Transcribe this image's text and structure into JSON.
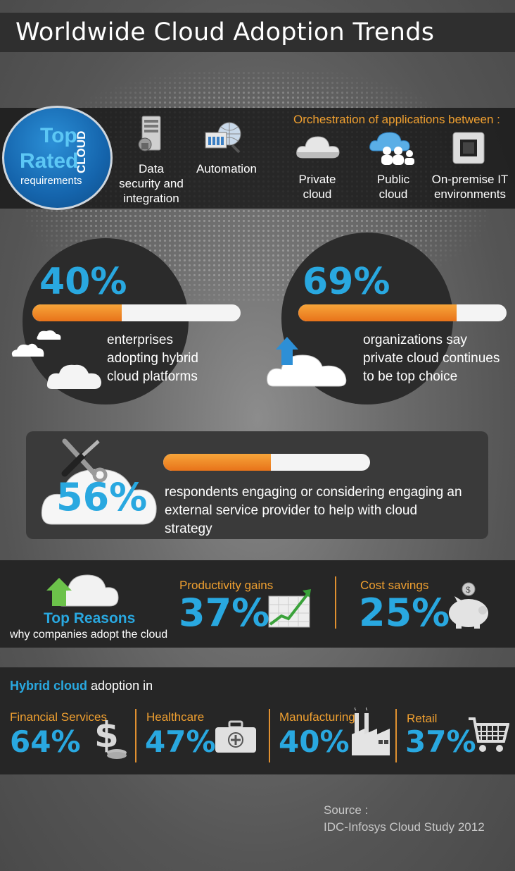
{
  "title": "Worldwide Cloud Adoption Trends",
  "requirements": {
    "badge_top": "Top",
    "badge_rated": "Rated",
    "badge_cloud": "CLOUD",
    "badge_req": "requirements",
    "items": [
      {
        "label": "Data security and integration",
        "icon": "server-lock-icon"
      },
      {
        "label": "Automation",
        "icon": "automation-globe-icon"
      }
    ],
    "orchestration_title": "Orchestration of applications between :",
    "orchestration_items": [
      {
        "label": "Private cloud",
        "icon": "private-cloud-icon"
      },
      {
        "label": "Public cloud",
        "icon": "public-cloud-icon"
      },
      {
        "label": "On-premise IT environments",
        "icon": "chip-icon"
      }
    ]
  },
  "stats": [
    {
      "percent": "40%",
      "value": 40,
      "text": "enterprises adopting hybrid cloud platforms"
    },
    {
      "percent": "69%",
      "value": 69,
      "text": "organizations say private cloud continues to be top choice"
    },
    {
      "percent": "56%",
      "value": 56,
      "text": "respondents engaging or considering engaging an external service provider to help with cloud strategy"
    }
  ],
  "top_reasons": {
    "title": "Top Reasons",
    "subtitle": "why companies adopt the cloud",
    "items": [
      {
        "label": "Productivity gains",
        "value": "37%",
        "icon": "growth-chart-icon"
      },
      {
        "label": "Cost savings",
        "value": "25%",
        "icon": "piggy-bank-icon"
      }
    ]
  },
  "hybrid": {
    "title_strong": "Hybrid cloud",
    "title_rest": " adoption in",
    "items": [
      {
        "label": "Financial Services",
        "value": "64%",
        "icon": "dollar-coins-icon"
      },
      {
        "label": "Healthcare",
        "value": "47%",
        "icon": "medical-kit-icon"
      },
      {
        "label": "Manufacturing",
        "value": "40%",
        "icon": "factory-icon"
      },
      {
        "label": "Retail",
        "value": "37%",
        "icon": "shopping-cart-icon"
      }
    ]
  },
  "source": {
    "line1": "Source :",
    "line2": "IDC-Infosys Cloud Study 2012"
  },
  "colors": {
    "accent_blue": "#29a8e0",
    "accent_orange": "#f0a030",
    "dark_band": "#262626"
  }
}
